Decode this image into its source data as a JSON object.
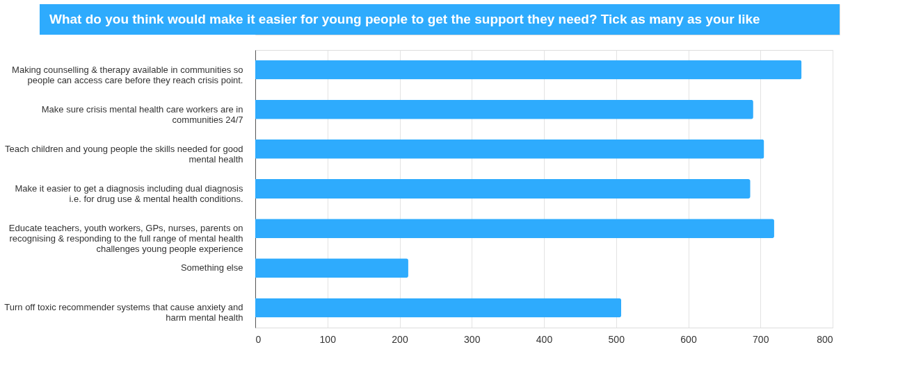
{
  "chart_data": {
    "type": "bar",
    "orientation": "horizontal",
    "title": "What do you think would make it easier for young people to get the support they need? Tick as many as your like",
    "categories": [
      "Making counselling & therapy available in communities so people can access care before they reach crisis point.",
      "Make sure crisis mental health care workers are in communities 24/7",
      "Teach children and young people the skills needed for good mental health",
      "Make it easier to get a diagnosis including dual diagnosis i.e. for drug use & mental health conditions.",
      "Educate teachers, youth workers, GPs, nurses, parents on recognising & responding to the full range of mental health challenges young people experience",
      "Something else",
      "Turn off toxic recommender systems that cause anxiety and harm mental health"
    ],
    "values": [
      757,
      690,
      705,
      686,
      719,
      212,
      507
    ],
    "color": "#2eabfd",
    "xlim": [
      0,
      800
    ],
    "xticks": [
      0,
      100,
      200,
      300,
      400,
      500,
      600,
      700,
      800
    ],
    "grid": "x"
  }
}
